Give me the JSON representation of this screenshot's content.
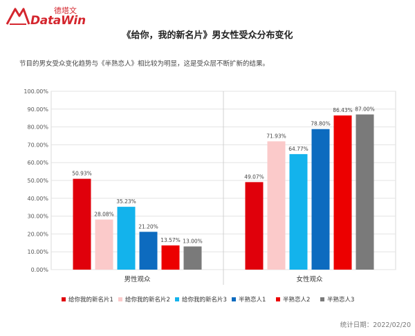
{
  "brand": {
    "wordmark": "DataWin",
    "cn_name": "德塔文"
  },
  "page": {
    "title": "《给你，我的新名片》男女性受众分布变化",
    "subtitle": "节目的男女受众变化趋势与《半熟恋人》相比较为明显，这是受众层不断扩新的结果。",
    "footer": "统计日期：2022/02/20"
  },
  "chart_data": {
    "type": "bar",
    "title": "",
    "categories": [
      "男性观众",
      "女性观众"
    ],
    "series": [
      {
        "name": "给你我的新名片1",
        "color": "#e0000b",
        "values": [
          50.93,
          49.07
        ],
        "labels": [
          "50.93%",
          "49.07%"
        ]
      },
      {
        "name": "给你我的新名片2",
        "color": "#fbcaca",
        "values": [
          28.08,
          71.93
        ],
        "labels": [
          "28.08%",
          "71.93%"
        ]
      },
      {
        "name": "给你我的新名片3",
        "color": "#13b3ec",
        "values": [
          35.23,
          64.77
        ],
        "labels": [
          "35.23%",
          "64.77%"
        ]
      },
      {
        "name": "半熟恋人1",
        "color": "#0d6bbf",
        "values": [
          21.2,
          78.8
        ],
        "labels": [
          "21.20%",
          "78.80%"
        ]
      },
      {
        "name": "半熟恋人2",
        "color": "#ec0000",
        "values": [
          13.57,
          86.43
        ],
        "labels": [
          "13.57%",
          "86.43%"
        ]
      },
      {
        "name": "半熟恋人3",
        "color": "#7a7a7a",
        "values": [
          13.0,
          87.0
        ],
        "labels": [
          "13.00%",
          "87.00%"
        ]
      }
    ],
    "yticks": [
      "0.00%",
      "10.00%",
      "20.00%",
      "30.00%",
      "40.00%",
      "50.00%",
      "60.00%",
      "70.00%",
      "80.00%",
      "90.00%",
      "100.00%"
    ],
    "ylim": [
      0,
      100
    ],
    "grid": true,
    "legend": "bottom"
  }
}
